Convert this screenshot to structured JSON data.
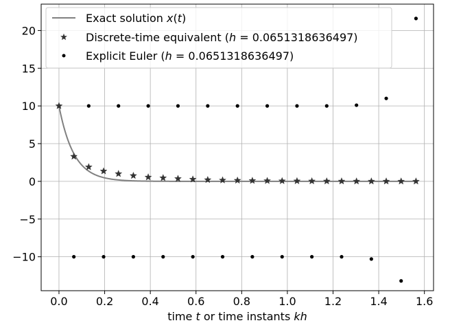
{
  "chart_data": {
    "type": "scatter",
    "xlabel": "time t or time instants kh",
    "ylabel": "",
    "xlim": [
      -0.078,
      1.64
    ],
    "ylim": [
      -14.5,
      23.5
    ],
    "xticks": [
      0.0,
      0.2,
      0.4,
      0.6,
      0.8,
      1.0,
      1.2,
      1.4,
      1.6
    ],
    "xtick_labels": [
      "0.0",
      "0.2",
      "0.4",
      "0.6",
      "0.8",
      "1.0",
      "1.2",
      "1.4",
      "1.6"
    ],
    "yticks": [
      -10,
      -5,
      0,
      5,
      10,
      15,
      20
    ],
    "ytick_labels": [
      "−10",
      "−5",
      "0",
      "5",
      "10",
      "15",
      "20"
    ],
    "grid": true,
    "legend_position": "top-left",
    "h": 0.0651318636497,
    "exact": {
      "name": "Exact solution x(t)",
      "legend": [
        "Exact solution ",
        "x",
        "(",
        "t",
        ")"
      ],
      "color": "#808080",
      "function": "10*exp(-t/0.0651318636497)",
      "x_range": [
        0.0,
        1.5631647276
      ]
    },
    "discrete": {
      "name": "Discrete-time equivalent (h = 0.0651318636497)",
      "legend": [
        "Discrete-time equivalent (",
        "h",
        " = 0.0651318636497)"
      ],
      "color": "#333333",
      "x": [
        0.0,
        0.0651318636497,
        0.1302637272994,
        0.1953955909491,
        0.2605274545988,
        0.3256593182485,
        0.3907911818982,
        0.4559230455479,
        0.5210549091976,
        0.5861867728473,
        0.651318636497,
        0.7164505001467,
        0.7815823637964,
        0.8467142274461,
        0.9118460910958,
        0.9769779547455,
        1.0421098183952,
        1.1072416820449,
        1.1723735456946,
        1.2375054093443,
        1.302637272994,
        1.3677691366437,
        1.4329010002934,
        1.4980328639431,
        1.5631647275928
      ],
      "y": [
        10.0,
        3.3,
        1.9,
        1.35,
        1.0,
        0.75,
        0.55,
        0.45,
        0.35,
        0.27,
        0.2,
        0.15,
        0.12,
        0.09,
        0.07,
        0.05,
        0.04,
        0.03,
        0.02,
        0.015,
        0.01,
        0.008,
        0.006,
        0.004,
        0.003
      ]
    },
    "euler": {
      "name": "Explicit Euler (h = 0.0651318636497)",
      "legend": [
        "Explicit Euler (",
        "h",
        " = 0.0651318636497)"
      ],
      "color": "#000000",
      "x": [
        0.0,
        0.0651318636497,
        0.1302637272994,
        0.1953955909491,
        0.2605274545988,
        0.3256593182485,
        0.3907911818982,
        0.4559230455479,
        0.5210549091976,
        0.5861867728473,
        0.651318636497,
        0.7164505001467,
        0.7815823637964,
        0.8467142274461,
        0.9118460910958,
        0.9769779547455,
        1.0421098183952,
        1.1072416820449,
        1.1723735456946,
        1.2375054093443,
        1.302637272994,
        1.3677691366437,
        1.4329010002934,
        1.4980328639431,
        1.5631647275928
      ],
      "y": [
        10.0,
        -10.0,
        10.0,
        -10.0,
        10.0,
        -10.0,
        10.0,
        -10.0,
        10.0,
        -10.0,
        10.0,
        -10.0,
        10.0,
        -10.0,
        10.0,
        -10.0,
        10.0,
        -10.0,
        10.0,
        -10.0,
        10.1,
        -10.3,
        11.0,
        -13.2,
        21.6
      ]
    }
  }
}
